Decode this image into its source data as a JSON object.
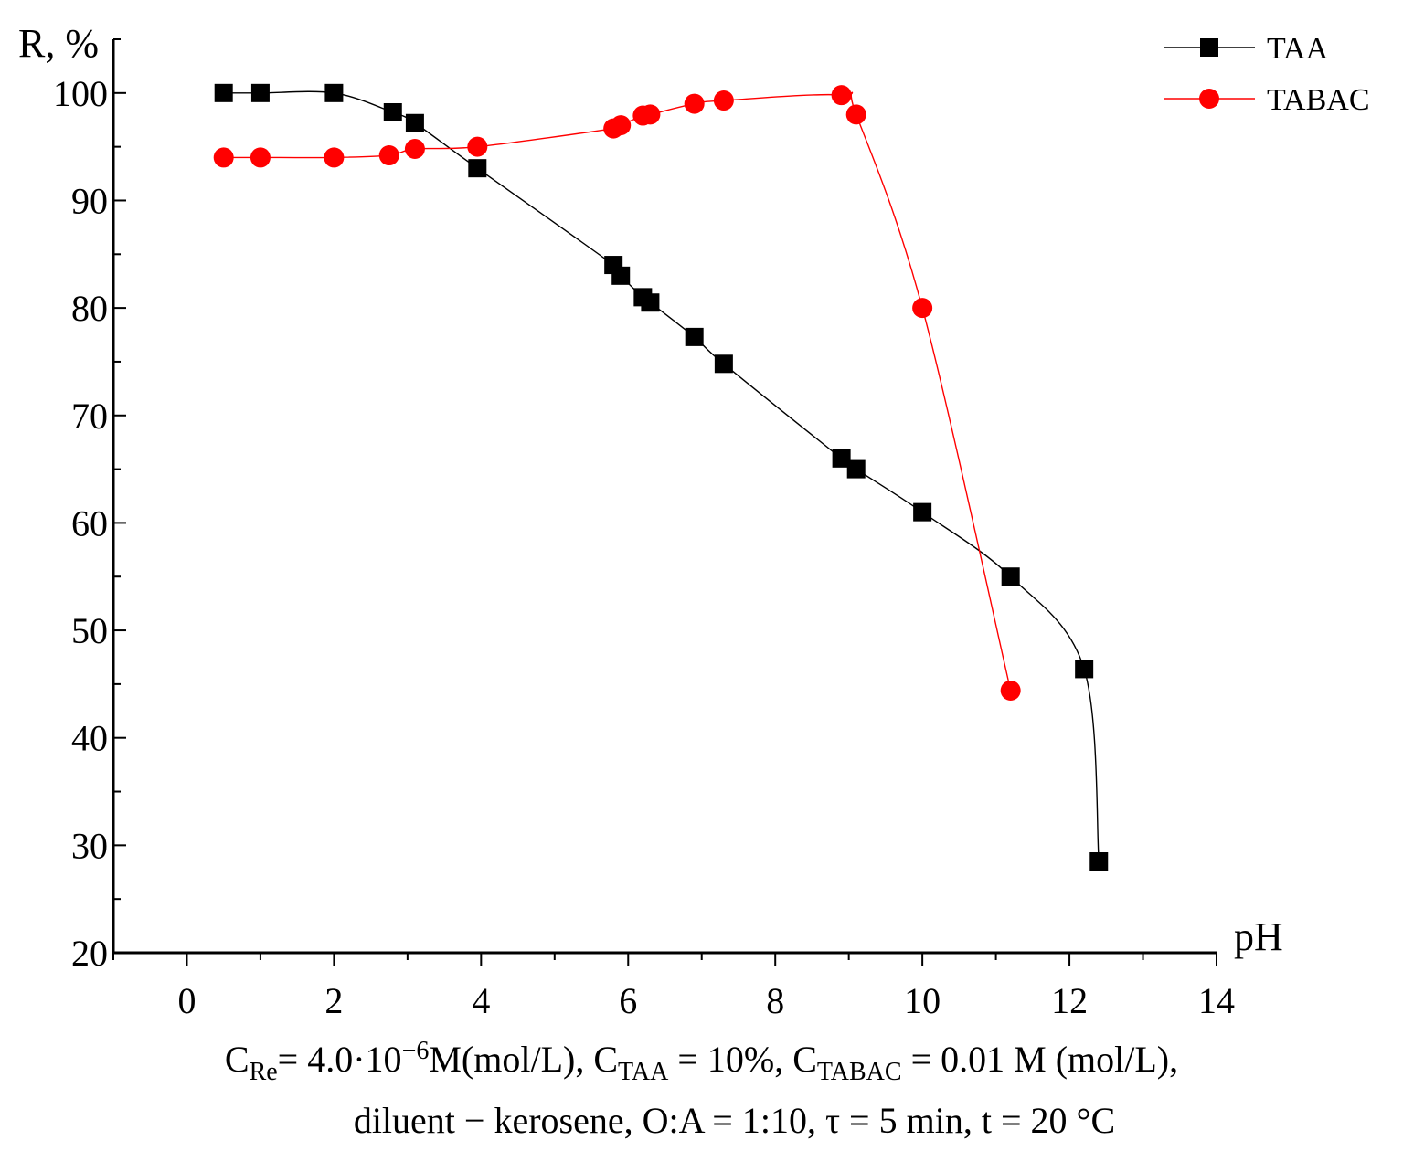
{
  "chart_data": {
    "type": "line",
    "xlabel": "pH",
    "ylabel": "R, %",
    "xlim": [
      -1,
      14
    ],
    "ylim": [
      20,
      105
    ],
    "x_ticks": [
      0,
      2,
      4,
      6,
      8,
      10,
      12,
      14
    ],
    "y_ticks": [
      20,
      30,
      40,
      50,
      60,
      70,
      80,
      90,
      100
    ],
    "legend_position": "top-right",
    "grid": false,
    "series": [
      {
        "name": "TAA",
        "color": "#000000",
        "marker": "square",
        "x": [
          0.5,
          1.0,
          2.0,
          2.8,
          3.1,
          3.95,
          5.8,
          5.9,
          6.2,
          6.3,
          6.9,
          7.3,
          8.9,
          9.1,
          10.0,
          11.2,
          12.2,
          12.4
        ],
        "y": [
          100,
          100,
          100,
          98.2,
          97.2,
          93,
          84,
          83,
          81,
          80.5,
          77.3,
          74.8,
          66,
          65,
          61,
          55,
          46.4,
          28.5
        ]
      },
      {
        "name": "TABAC",
        "color": "#ff0000",
        "marker": "circle",
        "x": [
          0.5,
          1.0,
          2.0,
          2.75,
          3.1,
          3.95,
          5.8,
          5.9,
          6.2,
          6.3,
          6.9,
          7.3,
          8.9,
          9.1,
          10.0,
          11.2
        ],
        "y": [
          94,
          94,
          94,
          94.2,
          94.8,
          95,
          96.7,
          97,
          97.9,
          98,
          99,
          99.3,
          99.8,
          98,
          80,
          44.4
        ]
      }
    ]
  },
  "caption": {
    "line1": {
      "c1": "C",
      "c1_sub": "Re",
      "t1": "= 4.0·10",
      "t1_sup": "−6",
      "t2": "M(mol/L), C",
      "c2_sub": "TAA",
      "t3": " = 10%, C",
      "c3_sub": "TABAC",
      "t4": " = 0.01 M (mol/L),"
    },
    "line2": "diluent − kerosene,  O:A = 1:10, τ = 5 min, t = 20 °C"
  }
}
